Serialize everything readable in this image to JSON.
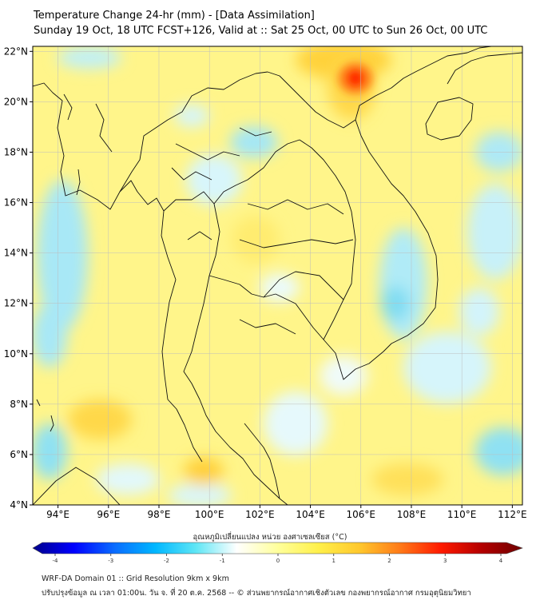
{
  "title_line1": "Temperature Change 24-hr (mm) - [Data Assimilation]",
  "title_line2": "Sunday 19 Oct, 18 UTC FCST+126, Valid at :: Sat 25 Oct, 00 UTC to Sun 26 Oct, 00 UTC",
  "lat_labels": [
    "22°N",
    "20°N",
    "18°N",
    "16°N",
    "14°N",
    "12°N",
    "10°N",
    "8°N",
    "6°N",
    "4°N"
  ],
  "lon_labels": [
    "94°E",
    "96°E",
    "98°E",
    "100°E",
    "102°E",
    "104°E",
    "106°E",
    "108°E",
    "110°E",
    "112°E"
  ],
  "lat_values": [
    22,
    20,
    18,
    16,
    14,
    12,
    10,
    8,
    6,
    4
  ],
  "lon_values": [
    94,
    96,
    98,
    100,
    102,
    104,
    106,
    108,
    110,
    112
  ],
  "extent": {
    "lon_min": 93,
    "lon_max": 112.4,
    "lat_min": 4,
    "lat_max": 22.2
  },
  "colorbar": {
    "title": "อุณหภูมิเปลี่ยนแปลง หน่วย องศาเซลเซียส (°C)",
    "ticks": [
      "-4",
      "-3",
      "-2",
      "-1",
      "0",
      "1",
      "2",
      "3",
      "4"
    ],
    "tick_values": [
      -4,
      -3,
      -2,
      -1,
      0,
      1,
      2,
      3,
      4
    ],
    "colors": [
      "#00008b",
      "#0000ff",
      "#0a6cff",
      "#00b7ff",
      "#5fe6f5",
      "#ffffff",
      "#ffff9c",
      "#fff04a",
      "#ffc82d",
      "#ff7a18",
      "#ff1a00",
      "#b40000",
      "#6e0000"
    ]
  },
  "field_background": "#fff58a",
  "coast_color": "#111111",
  "footer_line1": "WRF-DA Domain 01 :: Grid Resolution 9km x 9km",
  "footer_line2": "ปรับปรุงข้อมูล ณ เวลา 01:00น. วัน จ. ที่ 20 ต.ค. 2568 -- © ส่วนพยากรณ์อากาศเชิงตัวเลข กองพยากรณ์อากาศ กรมอุตุนิยมวิทยา"
}
